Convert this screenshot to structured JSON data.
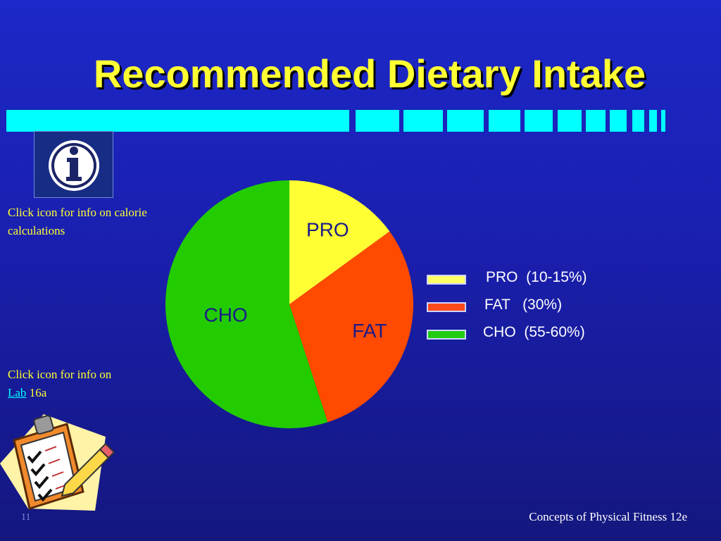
{
  "slide": {
    "title": "Recommended Dietary Intake",
    "info_note": "Click icon for info on calorie calculations",
    "lab_note_prefix": "Click icon for info on",
    "lab_link": "Lab",
    "lab_note_suffix": "16a",
    "footer": "Concepts of Physical Fitness 12e",
    "slide_number": "11"
  },
  "icons": {
    "info": "info-icon",
    "clipboard": "clipboard-checklist-icon"
  },
  "chart_data": {
    "type": "pie",
    "slices": [
      {
        "label": "PRO",
        "value": 15,
        "color": "#ffff33"
      },
      {
        "label": "FAT",
        "value": 30,
        "color": "#ff4a00"
      },
      {
        "label": "CHO",
        "value": 55,
        "color": "#22cc00"
      }
    ],
    "legend": [
      {
        "label": "PRO  (10-15%)",
        "color": "#ffff66"
      },
      {
        "label": "FAT   (30%)",
        "color": "#ff4a1a"
      },
      {
        "label": "CHO  (55-60%)",
        "color": "#22cc11"
      }
    ],
    "legend_placement": "right"
  }
}
